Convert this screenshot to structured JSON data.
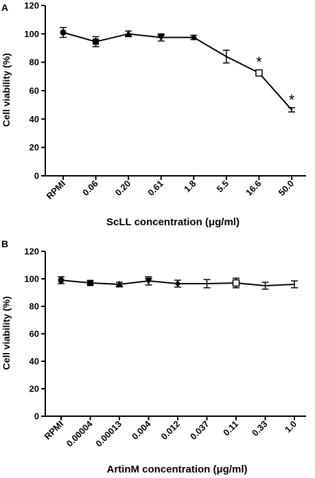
{
  "chart_data": [
    {
      "type": "line",
      "panel_label": "A",
      "xlabel_prefix": "ScLL concentration (",
      "xlabel_mu": "μ",
      "xlabel_suffix": "g/ml)",
      "ylabel": "Cell viability (%)",
      "ylim": [
        0,
        120
      ],
      "yticks": [
        "0",
        "20",
        "40",
        "60",
        "80",
        "100",
        "120"
      ],
      "categories": [
        "RPMI",
        "0.06",
        "0.20",
        "0.61",
        "1.8",
        "5.5",
        "16.6",
        "50.0"
      ],
      "series": [
        {
          "values": [
            101,
            94.5,
            100,
            97.5,
            97.5,
            84,
            72.5,
            46.5
          ],
          "errors": [
            3.5,
            3.5,
            2,
            2.5,
            1.5,
            4.5,
            2,
            1.5
          ],
          "markers": [
            "circle",
            "square",
            "triangle-up",
            "triangle-down",
            "diamond",
            "none",
            "square-open",
            "none"
          ]
        }
      ],
      "annotations": [
        {
          "category": "16.6",
          "text": "*"
        },
        {
          "category": "50.0",
          "text": "*"
        }
      ]
    },
    {
      "type": "line",
      "panel_label": "B",
      "xlabel_prefix": "ArtinM concentration (",
      "xlabel_mu": "μ",
      "xlabel_suffix": "g/ml)",
      "ylabel": "Cell viability (%)",
      "ylim": [
        0,
        120
      ],
      "yticks": [
        "0",
        "20",
        "40",
        "60",
        "80",
        "100",
        "120"
      ],
      "categories": [
        "RPMI",
        "0.00004",
        "0.00013",
        "0.004",
        "0.012",
        "0.037",
        "0.11",
        "0.33",
        "1.0"
      ],
      "series": [
        {
          "values": [
            99,
            97,
            96,
            98.5,
            96.5,
            96.5,
            97,
            95,
            96
          ],
          "errors": [
            2.5,
            1.5,
            1.5,
            3,
            2.5,
            3,
            3.5,
            2.5,
            2.5
          ],
          "markers": [
            "circle",
            "square",
            "triangle-up",
            "triangle-down",
            "diamond",
            "none",
            "square-open",
            "none",
            "none"
          ]
        }
      ],
      "annotations": []
    }
  ]
}
